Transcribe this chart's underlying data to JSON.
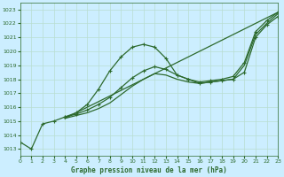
{
  "title": "Graphe pression niveau de la mer (hPa)",
  "bg_color": "#cceeff",
  "grid_color": "#b8ddd0",
  "line_color": "#2d6a2d",
  "xlim": [
    0,
    23
  ],
  "ylim": [
    1012.5,
    1023.5
  ],
  "xticks": [
    0,
    1,
    2,
    3,
    4,
    5,
    6,
    7,
    8,
    9,
    10,
    11,
    12,
    13,
    14,
    15,
    16,
    17,
    18,
    19,
    20,
    21,
    22,
    23
  ],
  "yticks": [
    1013,
    1014,
    1015,
    1016,
    1017,
    1018,
    1019,
    1020,
    1021,
    1022,
    1023
  ],
  "series": [
    {
      "x": [
        0,
        1,
        2,
        3,
        4,
        5,
        6,
        7,
        8,
        9,
        10,
        11,
        12,
        13,
        14,
        15,
        16,
        17,
        18,
        19,
        20,
        21,
        22,
        23
      ],
      "y": [
        1013.5,
        1013.0,
        1014.8,
        1015.0,
        1015.3,
        1015.6,
        1016.2,
        1017.3,
        1018.6,
        1019.6,
        1020.3,
        1020.5,
        1020.3,
        1019.5,
        1018.3,
        1018.0,
        1017.7,
        1017.8,
        1017.9,
        1018.0,
        1018.5,
        1021.0,
        1021.9,
        1022.5
      ],
      "marker": true,
      "lw": 0.9
    },
    {
      "x": [
        4,
        23
      ],
      "y": [
        1015.2,
        1022.8
      ],
      "marker": false,
      "lw": 0.9
    },
    {
      "x": [
        4,
        5,
        6,
        7,
        8,
        9,
        10,
        11,
        12,
        13,
        14,
        15,
        16,
        17,
        18,
        19,
        20,
        21,
        22,
        23
      ],
      "y": [
        1015.2,
        1015.4,
        1015.6,
        1015.9,
        1016.3,
        1016.9,
        1017.5,
        1018.0,
        1018.4,
        1018.3,
        1018.0,
        1017.8,
        1017.7,
        1017.8,
        1017.9,
        1018.0,
        1019.0,
        1021.2,
        1022.0,
        1022.7
      ],
      "marker": false,
      "lw": 0.9
    },
    {
      "x": [
        4,
        5,
        6,
        7,
        8,
        9,
        10,
        11,
        12,
        13,
        14,
        15,
        16,
        17,
        18,
        19,
        20,
        21,
        22,
        23
      ],
      "y": [
        1015.3,
        1015.5,
        1015.8,
        1016.2,
        1016.7,
        1017.4,
        1018.1,
        1018.6,
        1018.9,
        1018.7,
        1018.3,
        1018.0,
        1017.8,
        1017.9,
        1018.0,
        1018.2,
        1019.2,
        1021.4,
        1022.2,
        1022.8
      ],
      "marker": true,
      "lw": 0.9
    }
  ]
}
